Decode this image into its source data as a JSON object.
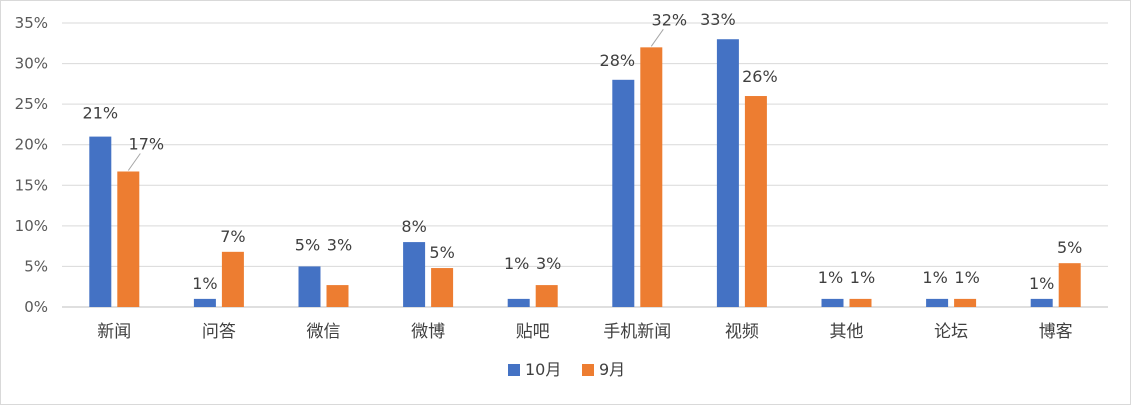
{
  "chart_data": {
    "type": "bar",
    "title": "",
    "xlabel": "",
    "ylabel": "",
    "categories": [
      "新闻",
      "问答",
      "微信",
      "微博",
      "贴吧",
      "手机新闻",
      "视频",
      "其他",
      "论坛",
      "博客"
    ],
    "series": [
      {
        "name": "10月",
        "color": "#4472C4",
        "values": [
          21,
          1,
          5,
          8,
          1,
          28,
          33,
          1,
          1,
          1
        ],
        "labels": [
          "21%",
          "1%",
          "5%",
          "8%",
          "1%",
          "28%",
          "33%",
          "1%",
          "1%",
          "1%"
        ]
      },
      {
        "name": "9月",
        "color": "#ED7D31",
        "values": [
          16.7,
          6.8,
          2.7,
          4.8,
          2.7,
          32,
          26,
          1,
          1,
          5.4
        ],
        "labels": [
          "17%",
          "7%",
          "3%",
          "5%",
          "3%",
          "32%",
          "26%",
          "1%",
          "1%",
          "5%"
        ]
      }
    ],
    "ylim": [
      0,
      35
    ],
    "yticks": [
      0,
      5,
      10,
      15,
      20,
      25,
      30,
      35
    ],
    "ytick_labels": [
      "0%",
      "5%",
      "10%",
      "15%",
      "20%",
      "25%",
      "30%",
      "35%"
    ],
    "grid": true,
    "legend": "bottom-center"
  }
}
